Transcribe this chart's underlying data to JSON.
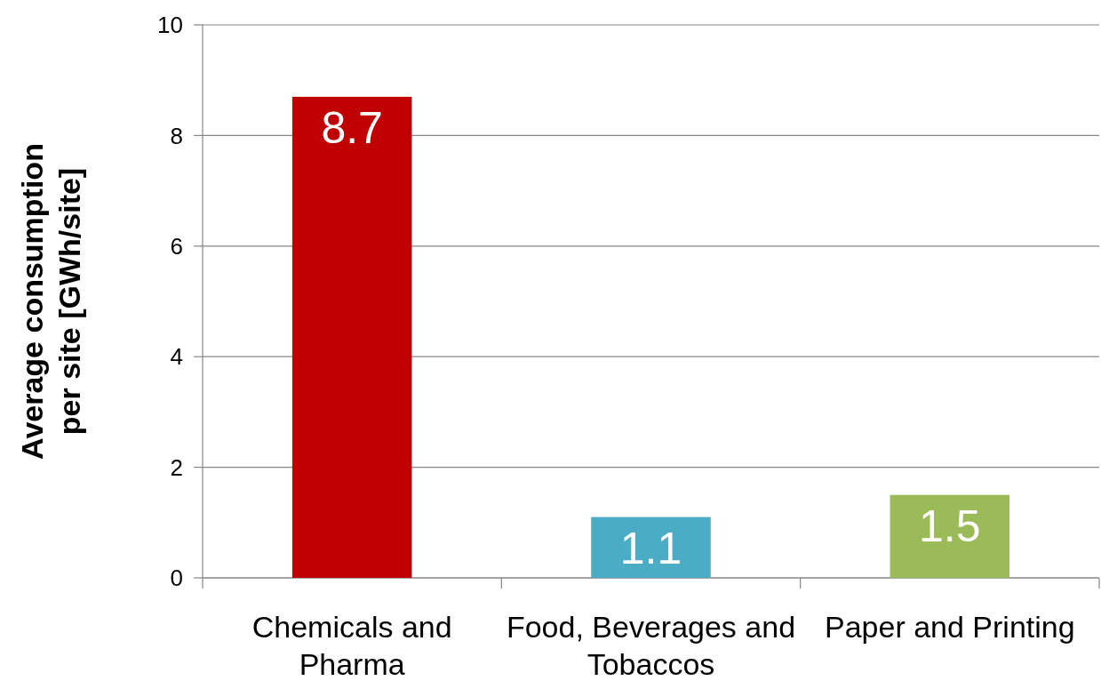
{
  "chart_data": {
    "type": "bar",
    "ylabel": "Average consumption\nper site [GWh/site]",
    "categories": [
      "Chemicals and Pharma",
      "Food, Beverages and Tobaccos",
      "Paper and Printing"
    ],
    "values": [
      8.7,
      1.1,
      1.5
    ],
    "colors": [
      "#c00000",
      "#4bacc6",
      "#9bbb59"
    ],
    "ylim": [
      0,
      10
    ],
    "yticks": [
      0,
      2,
      4,
      6,
      8,
      10
    ],
    "grid": "y",
    "data_labels": true
  }
}
